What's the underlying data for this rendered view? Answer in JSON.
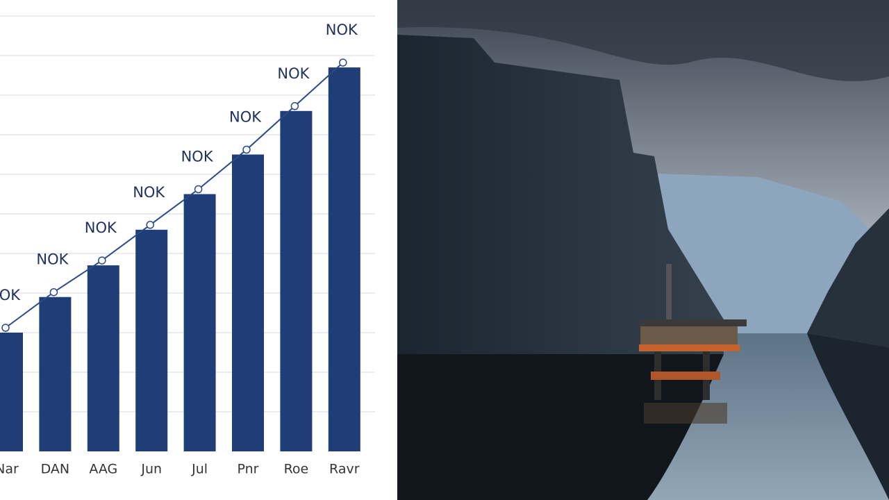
{
  "chart_data": {
    "type": "bar",
    "categories": [
      "Nar",
      "DAN",
      "AAG",
      "Jun",
      "Jul",
      "Pnr",
      "Roe",
      "Ravr"
    ],
    "values": [
      3.0,
      3.9,
      4.7,
      5.6,
      6.5,
      7.5,
      8.6,
      9.7
    ],
    "labels": [
      "NOK",
      "NOK",
      "NOK",
      "NOK",
      "NOK",
      "NOK",
      "NOK",
      "NOK"
    ],
    "color": "#1f3e78",
    "line_color": "#2a4a86",
    "ylim": [
      0,
      11
    ],
    "yticks": [
      1,
      2,
      3,
      4,
      5,
      6,
      7,
      8,
      9,
      10,
      11
    ],
    "grid": true
  }
}
